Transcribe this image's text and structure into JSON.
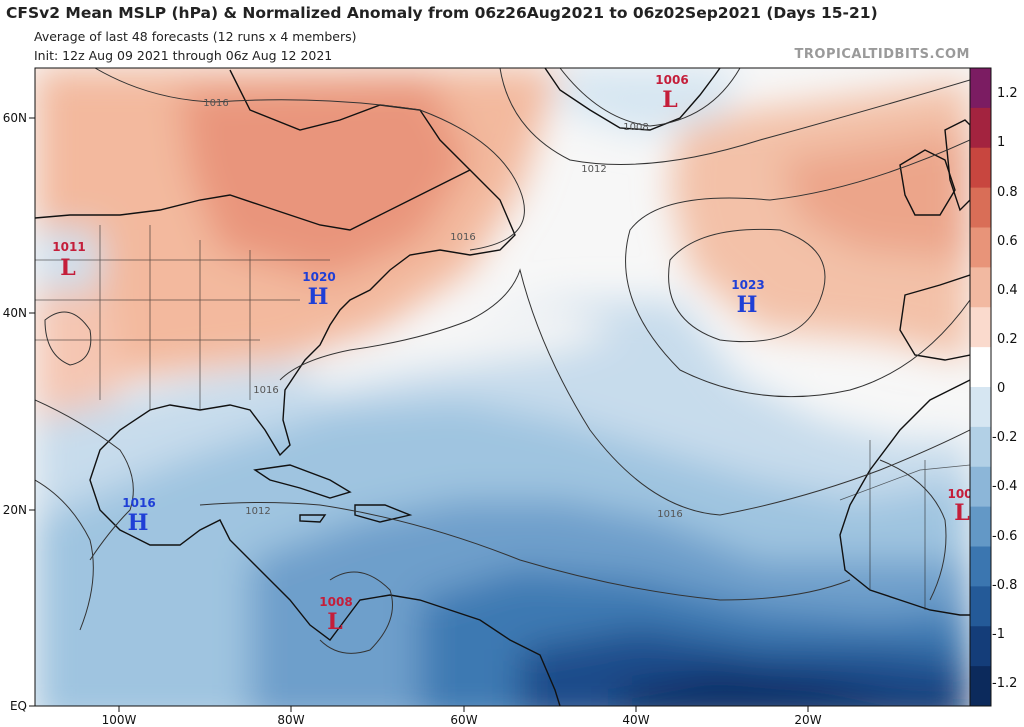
{
  "header": {
    "title": "CFSv2 Mean MSLP (hPa) & Normalized Anomaly from 06z26Aug2021 to 06z02Sep2021 (Days 15-21)",
    "subtitle1": "Average of last 48 forecasts (12 runs x 4 members)",
    "subtitle2": "Init: 12z Aug 09 2021 through 06z Aug 12 2021",
    "credit": "TROPICALTIDBITS.COM"
  },
  "axes": {
    "lat_labels": [
      "60N",
      "40N",
      "20N",
      "EQ"
    ],
    "lon_labels": [
      "100W",
      "80W",
      "60W",
      "40W",
      "20W"
    ]
  },
  "colorbar": {
    "ticks": [
      "1.2",
      "1",
      "0.8",
      "0.6",
      "0.4",
      "0.2",
      "0",
      "-0.2",
      "-0.4",
      "-0.6",
      "-0.8",
      "-1",
      "-1.2"
    ],
    "colors": [
      "#7b1c62",
      "#a3233f",
      "#c8463f",
      "#d96e57",
      "#e89479",
      "#f2b9a1",
      "#fadacd",
      "#ffffff",
      "#d6e6f2",
      "#b2d0e6",
      "#8cb6d8",
      "#6398c6",
      "#3b76b0",
      "#245a98",
      "#143d79",
      "#0c2a5c"
    ]
  },
  "isobars": [
    "1016",
    "1008",
    "1012",
    "1016",
    "1016",
    "1012",
    "1016"
  ],
  "pressure_centers": [
    {
      "value": "1006",
      "letter": "L",
      "type": "low"
    },
    {
      "value": "1011",
      "letter": "L",
      "type": "low"
    },
    {
      "value": "1020",
      "letter": "H",
      "type": "high"
    },
    {
      "value": "1023",
      "letter": "H",
      "type": "high"
    },
    {
      "value": "1016",
      "letter": "H",
      "type": "high"
    },
    {
      "value": "1008",
      "letter": "L",
      "type": "low"
    },
    {
      "value": "100",
      "letter": "L",
      "type": "low"
    }
  ]
}
